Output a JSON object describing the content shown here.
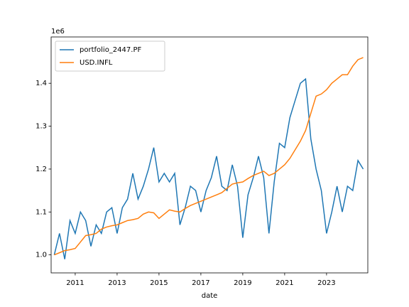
{
  "chart_data": {
    "type": "line",
    "x_label": "date",
    "offset_label": "1e6",
    "x": [
      2010.0,
      2010.25,
      2010.5,
      2010.75,
      2011.0,
      2011.25,
      2011.5,
      2011.75,
      2012.0,
      2012.25,
      2012.5,
      2012.75,
      2013.0,
      2013.25,
      2013.5,
      2013.75,
      2014.0,
      2014.25,
      2014.5,
      2014.75,
      2015.0,
      2015.25,
      2015.5,
      2015.75,
      2016.0,
      2016.25,
      2016.5,
      2016.75,
      2017.0,
      2017.25,
      2017.5,
      2017.75,
      2018.0,
      2018.25,
      2018.5,
      2018.75,
      2019.0,
      2019.25,
      2019.5,
      2019.75,
      2020.0,
      2020.25,
      2020.5,
      2020.75,
      2021.0,
      2021.25,
      2021.5,
      2021.75,
      2022.0,
      2022.25,
      2022.5,
      2022.75,
      2023.0,
      2023.25,
      2023.5,
      2023.75,
      2024.0,
      2024.25,
      2024.5,
      2024.75
    ],
    "series": [
      {
        "name": "portfolio_2447.PF",
        "color": "#1f77b4",
        "values": [
          1000000,
          1050000,
          990000,
          1080000,
          1050000,
          1100000,
          1080000,
          1020000,
          1070000,
          1050000,
          1100000,
          1110000,
          1050000,
          1110000,
          1130000,
          1190000,
          1130000,
          1160000,
          1200000,
          1250000,
          1170000,
          1190000,
          1170000,
          1190000,
          1070000,
          1110000,
          1160000,
          1150000,
          1100000,
          1150000,
          1180000,
          1230000,
          1160000,
          1150000,
          1210000,
          1160000,
          1040000,
          1140000,
          1180000,
          1230000,
          1180000,
          1050000,
          1170000,
          1260000,
          1250000,
          1320000,
          1360000,
          1400000,
          1410000,
          1270000,
          1200000,
          1150000,
          1050000,
          1100000,
          1160000,
          1100000,
          1160000,
          1150000,
          1220000,
          1200000
        ]
      },
      {
        "name": "USD.INFL",
        "color": "#ff7f0e",
        "values": [
          1000000,
          1005000,
          1010000,
          1012000,
          1015000,
          1030000,
          1045000,
          1047000,
          1050000,
          1060000,
          1065000,
          1068000,
          1070000,
          1075000,
          1080000,
          1082000,
          1085000,
          1095000,
          1100000,
          1098000,
          1085000,
          1095000,
          1105000,
          1102000,
          1100000,
          1108000,
          1115000,
          1120000,
          1125000,
          1130000,
          1135000,
          1140000,
          1145000,
          1155000,
          1165000,
          1168000,
          1170000,
          1178000,
          1185000,
          1190000,
          1195000,
          1185000,
          1190000,
          1200000,
          1210000,
          1225000,
          1245000,
          1265000,
          1290000,
          1330000,
          1370000,
          1375000,
          1385000,
          1400000,
          1410000,
          1420000,
          1420000,
          1440000,
          1455000,
          1460000
        ]
      }
    ],
    "xlim": [
      2009.85,
      2024.97
    ],
    "ylim": [
      958000,
      1508000
    ],
    "xticks": [
      2011,
      2013,
      2015,
      2017,
      2019,
      2021,
      2023
    ],
    "yticks": [
      {
        "value": 1000000,
        "label": "1.0"
      },
      {
        "value": 1100000,
        "label": "1.1"
      },
      {
        "value": 1200000,
        "label": "1.2"
      },
      {
        "value": 1300000,
        "label": "1.3"
      },
      {
        "value": 1400000,
        "label": "1.4"
      }
    ],
    "legend": "upper left"
  }
}
